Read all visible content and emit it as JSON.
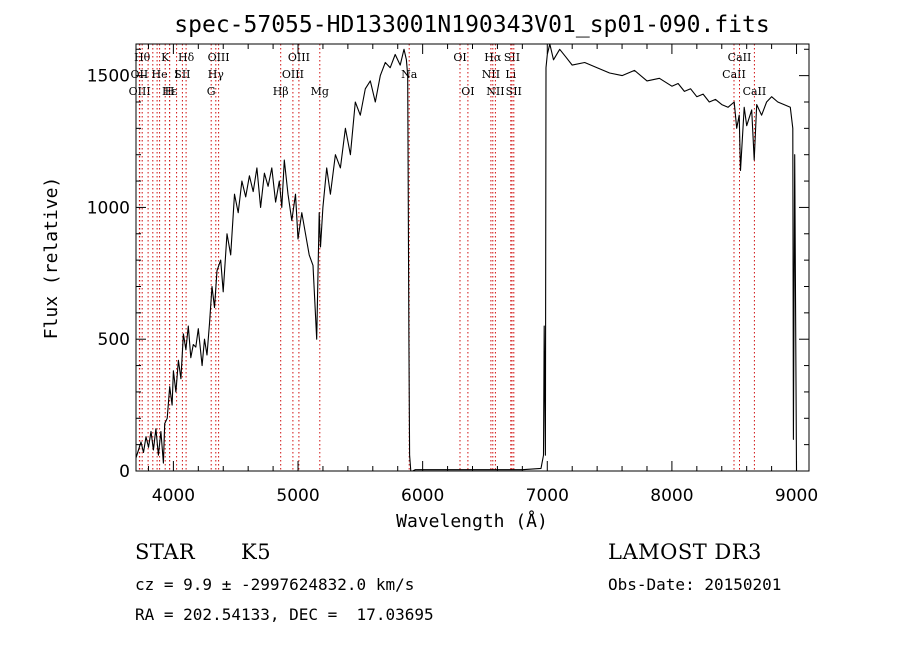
{
  "chart_data": {
    "type": "line",
    "title": "spec-57055-HD133001N190343V01_sp01-090.fits",
    "xlabel": "Wavelength (Å)",
    "ylabel": "Flux (relative)",
    "xlim": [
      3700,
      9100
    ],
    "ylim": [
      0,
      1620
    ],
    "xticks": [
      4000,
      5000,
      6000,
      7000,
      8000,
      9000
    ],
    "yticks": [
      0,
      500,
      1000,
      1500
    ],
    "series": [
      {
        "name": "flux",
        "x": [
          3700,
          3720,
          3740,
          3760,
          3780,
          3800,
          3820,
          3840,
          3860,
          3880,
          3900,
          3920,
          3930,
          3950,
          3970,
          3990,
          4000,
          4020,
          4040,
          4060,
          4080,
          4100,
          4120,
          4140,
          4160,
          4180,
          4200,
          4230,
          4250,
          4270,
          4290,
          4310,
          4330,
          4350,
          4380,
          4400,
          4430,
          4460,
          4490,
          4520,
          4550,
          4580,
          4610,
          4640,
          4670,
          4700,
          4730,
          4760,
          4790,
          4820,
          4850,
          4870,
          4890,
          4920,
          4950,
          4980,
          5000,
          5030,
          5060,
          5090,
          5120,
          5150,
          5170,
          5180,
          5200,
          5230,
          5260,
          5300,
          5340,
          5380,
          5420,
          5460,
          5500,
          5540,
          5580,
          5620,
          5660,
          5700,
          5740,
          5780,
          5820,
          5850,
          5870,
          5880,
          5890,
          5895,
          5905,
          5910,
          5920,
          5940,
          6000,
          6200,
          6400,
          6600,
          6800,
          6950,
          6970,
          6975,
          6985,
          6990,
          7000,
          7020,
          7050,
          7100,
          7150,
          7200,
          7300,
          7400,
          7500,
          7600,
          7700,
          7800,
          7900,
          8000,
          8050,
          8100,
          8150,
          8200,
          8250,
          8300,
          8350,
          8400,
          8450,
          8500,
          8520,
          8540,
          8550,
          8580,
          8600,
          8640,
          8660,
          8680,
          8720,
          8760,
          8800,
          8850,
          8900,
          8950,
          8970,
          8975,
          8985,
          9000
        ],
        "values": [
          50,
          80,
          110,
          70,
          130,
          90,
          150,
          80,
          160,
          60,
          150,
          30,
          180,
          200,
          320,
          250,
          380,
          300,
          420,
          350,
          520,
          460,
          550,
          430,
          480,
          470,
          540,
          400,
          500,
          440,
          560,
          700,
          620,
          760,
          800,
          680,
          900,
          820,
          1050,
          980,
          1100,
          1040,
          1120,
          1060,
          1150,
          1000,
          1130,
          1080,
          1150,
          1020,
          1100,
          1000,
          1180,
          1050,
          950,
          1050,
          880,
          980,
          900,
          820,
          780,
          500,
          980,
          850,
          1000,
          1150,
          1050,
          1200,
          1150,
          1300,
          1200,
          1400,
          1350,
          1450,
          1480,
          1400,
          1500,
          1550,
          1530,
          1580,
          1540,
          1600,
          1560,
          1500,
          500,
          60,
          0,
          0,
          0,
          5,
          5,
          5,
          5,
          5,
          5,
          10,
          60,
          550,
          60,
          1530,
          1580,
          1620,
          1560,
          1600,
          1570,
          1540,
          1550,
          1530,
          1510,
          1500,
          1520,
          1480,
          1490,
          1460,
          1470,
          1440,
          1450,
          1420,
          1430,
          1400,
          1410,
          1390,
          1380,
          1400,
          1300,
          1350,
          1140,
          1380,
          1310,
          1370,
          1180,
          1390,
          1350,
          1400,
          1420,
          1400,
          1390,
          1380,
          1300,
          120,
          1200,
          0
        ]
      }
    ],
    "lines": [
      {
        "x": 3750,
        "labels": [
          {
            "text": "Hθ",
            "row": 0
          }
        ]
      },
      {
        "x": 3727,
        "labels": [
          {
            "text": "OII",
            "row": 1
          }
        ]
      },
      {
        "x": 3730,
        "labels": [
          {
            "text": "OIII",
            "row": 2
          }
        ]
      },
      {
        "x": 3797,
        "labels": []
      },
      {
        "x": 3835,
        "labels": []
      },
      {
        "x": 3869,
        "labels": []
      },
      {
        "x": 3889,
        "labels": [
          {
            "text": "He",
            "row": 1
          }
        ]
      },
      {
        "x": 3934,
        "labels": [
          {
            "text": "K",
            "row": 0
          }
        ]
      },
      {
        "x": 3970,
        "labels": [
          {
            "text": "Hε",
            "row": 2
          }
        ]
      },
      {
        "x": 3969,
        "labels": [
          {
            "text": "H",
            "row": 2
          }
        ]
      },
      {
        "x": 4026,
        "labels": [
          {
            "text": "I",
            "row": 1
          }
        ]
      },
      {
        "x": 4072,
        "labels": [
          {
            "text": "SII",
            "row": 1
          }
        ]
      },
      {
        "x": 4102,
        "labels": [
          {
            "text": "Hδ",
            "row": 0
          }
        ]
      },
      {
        "x": 4303,
        "labels": [
          {
            "text": "G",
            "row": 2
          }
        ]
      },
      {
        "x": 4340,
        "labels": [
          {
            "text": "Hγ",
            "row": 1
          }
        ]
      },
      {
        "x": 4363,
        "labels": [
          {
            "text": "OIII",
            "row": 0
          }
        ]
      },
      {
        "x": 4861,
        "labels": [
          {
            "text": "Hβ",
            "row": 2
          }
        ]
      },
      {
        "x": 4959,
        "labels": [
          {
            "text": "OIII",
            "row": 1
          }
        ]
      },
      {
        "x": 5007,
        "labels": [
          {
            "text": "OIII",
            "row": 0
          }
        ]
      },
      {
        "x": 5175,
        "labels": [
          {
            "text": "Mg",
            "row": 2
          }
        ]
      },
      {
        "x": 5892,
        "labels": [
          {
            "text": "Na",
            "row": 1
          }
        ]
      },
      {
        "x": 6300,
        "labels": [
          {
            "text": "OI",
            "row": 0
          }
        ]
      },
      {
        "x": 6363,
        "labels": [
          {
            "text": "OI",
            "row": 2
          }
        ]
      },
      {
        "x": 6548,
        "labels": [
          {
            "text": "NII",
            "row": 1
          }
        ]
      },
      {
        "x": 6563,
        "labels": [
          {
            "text": "Hα",
            "row": 0
          }
        ]
      },
      {
        "x": 6584,
        "labels": [
          {
            "text": "NII",
            "row": 2
          }
        ]
      },
      {
        "x": 6707,
        "labels": [
          {
            "text": "Li",
            "row": 1
          }
        ]
      },
      {
        "x": 6717,
        "labels": [
          {
            "text": "SII",
            "row": 0
          }
        ]
      },
      {
        "x": 6731,
        "labels": [
          {
            "text": "SII",
            "row": 2
          }
        ]
      },
      {
        "x": 8498,
        "labels": [
          {
            "text": "CaII",
            "row": 1
          }
        ]
      },
      {
        "x": 8542,
        "labels": [
          {
            "text": "CaII",
            "row": 0
          }
        ]
      },
      {
        "x": 8662,
        "labels": [
          {
            "text": "CaII",
            "row": 2
          }
        ]
      }
    ]
  },
  "info": {
    "object_class": "STAR",
    "subclass": "K5",
    "survey": "LAMOST DR3",
    "cz_line": "cz = 9.9 ± -2997624832.0 km/s",
    "obs_date_line": "Obs-Date: 20150201",
    "radec_line": "RA = 202.54133, DEC =  17.03695"
  }
}
